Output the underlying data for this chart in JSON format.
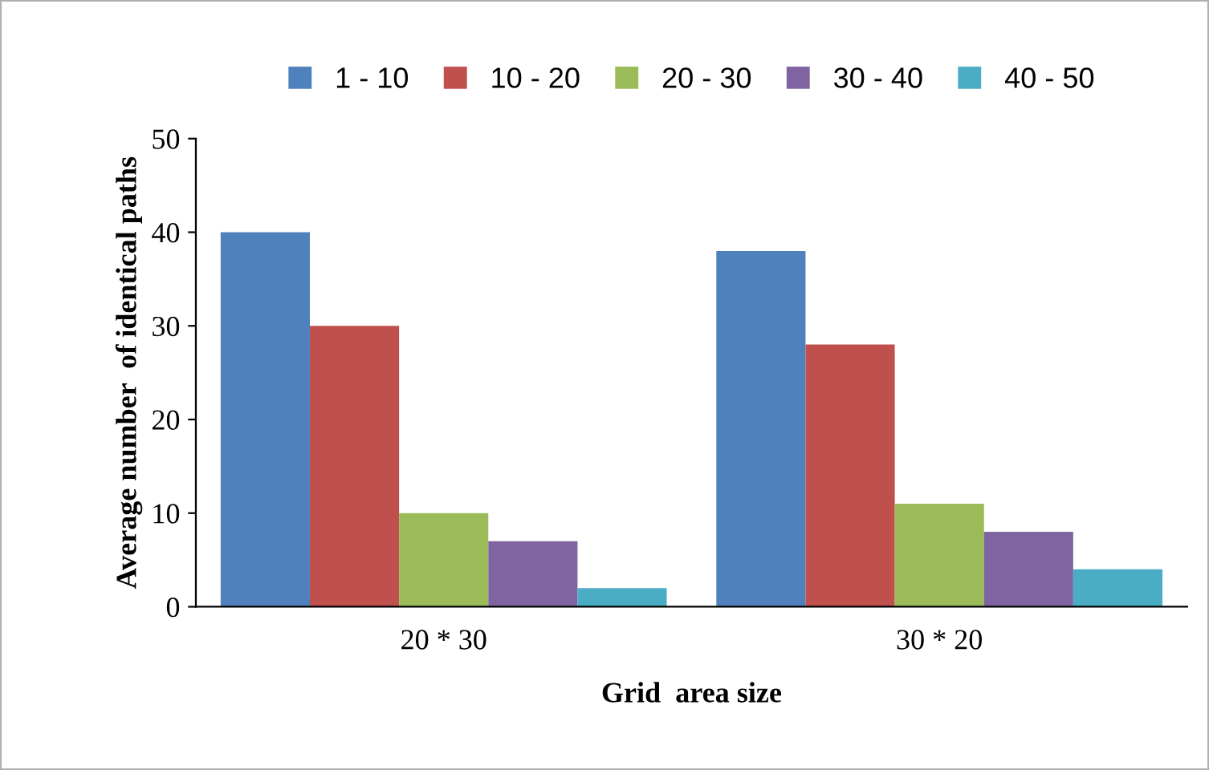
{
  "chart_data": {
    "type": "bar",
    "categories": [
      "20 * 30",
      "30 * 20"
    ],
    "series": [
      {
        "name": "1 - 10",
        "color": "#4f81bd",
        "values": [
          40,
          38
        ]
      },
      {
        "name": "10 - 20",
        "color": "#c0504d",
        "values": [
          30,
          28
        ]
      },
      {
        "name": "20 - 30",
        "color": "#9bbb59",
        "values": [
          10,
          11
        ]
      },
      {
        "name": "30 - 40",
        "color": "#8064a2",
        "values": [
          7,
          8
        ]
      },
      {
        "name": "40 - 50",
        "color": "#4bacc6",
        "values": [
          2,
          4
        ]
      }
    ],
    "xlabel": "Grid  area size",
    "ylabel": "Average number  of identical paths",
    "ylim": [
      0,
      50
    ],
    "yticks": [
      0,
      10,
      20,
      30,
      40,
      50
    ],
    "grid": false,
    "legend": "top"
  }
}
